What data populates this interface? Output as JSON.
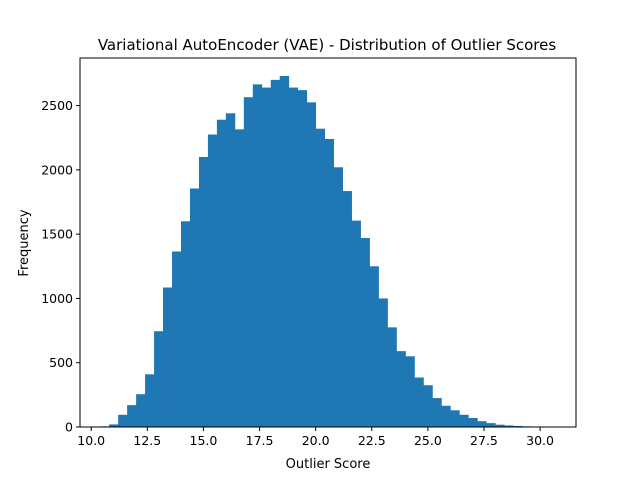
{
  "chart_data": {
    "type": "bar",
    "title": "Variational AutoEncoder (VAE) - Distribution of Outlier Scores",
    "xlabel": "Outlier Score",
    "ylabel": "Frequency",
    "xlim": [
      9.5,
      31.6
    ],
    "ylim": [
      0,
      2870
    ],
    "grid": false,
    "bar_color": "#1f77b4",
    "bin_start": 10.4,
    "bin_width": 0.4,
    "values": [
      5,
      20,
      95,
      170,
      255,
      410,
      745,
      1085,
      1365,
      1600,
      1855,
      2100,
      2275,
      2390,
      2440,
      2315,
      2565,
      2665,
      2640,
      2700,
      2730,
      2640,
      2620,
      2525,
      2320,
      2240,
      2020,
      1835,
      1605,
      1470,
      1250,
      1000,
      775,
      590,
      550,
      385,
      325,
      225,
      165,
      130,
      95,
      70,
      45,
      30,
      18,
      12,
      8,
      5,
      3,
      2,
      1
    ],
    "x_ticks": [
      10.0,
      12.5,
      15.0,
      17.5,
      20.0,
      22.5,
      25.0,
      27.5,
      30.0
    ],
    "x_tick_labels": [
      "10.0",
      "12.5",
      "15.0",
      "17.5",
      "20.0",
      "22.5",
      "25.0",
      "27.5",
      "30.0"
    ],
    "y_ticks": [
      0,
      500,
      1000,
      1500,
      2000,
      2500
    ],
    "y_tick_labels": [
      "0",
      "500",
      "1000",
      "1500",
      "2000",
      "2500"
    ]
  }
}
